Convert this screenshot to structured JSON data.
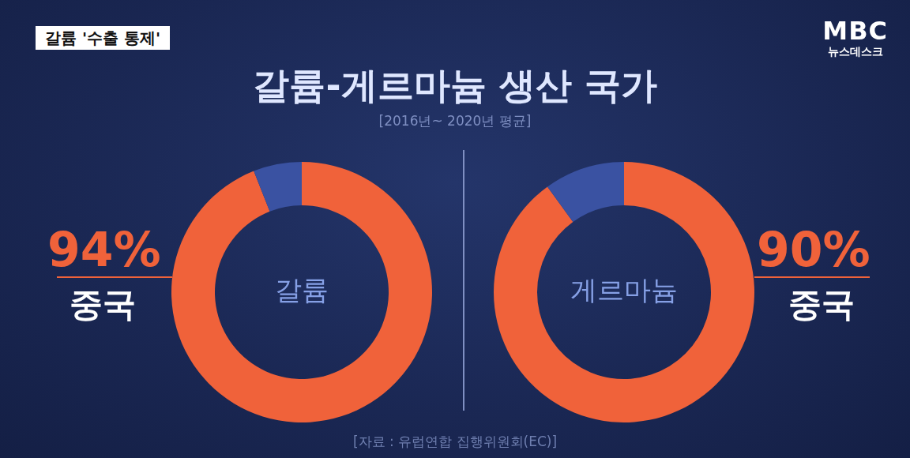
{
  "header": {
    "caption": "갈륨 '수출 통제'",
    "logo": [
      "MBC",
      "뉴스데스크"
    ],
    "title": "갈륨-게르마늄 생산 국가",
    "subtitle": "[2016년~ 2020년 평균]",
    "source": "[자료 : 유럽연합 집행위원회(EC)]"
  },
  "chart_data": [
    {
      "type": "pie",
      "title": "갈륨",
      "categories": [
        "중국",
        null
      ],
      "values": [
        94,
        6
      ],
      "value_labels": [
        "94%",
        null
      ],
      "data_labels": true,
      "colors": [
        "#f0623a",
        "#3a52a2"
      ]
    },
    {
      "type": "pie",
      "title": "게르마늄",
      "categories": [
        "중국",
        null
      ],
      "values": [
        90,
        10
      ],
      "value_labels": [
        "90%",
        null
      ],
      "data_labels": true,
      "colors": [
        "#f0623a",
        "#3a52a2"
      ]
    }
  ]
}
